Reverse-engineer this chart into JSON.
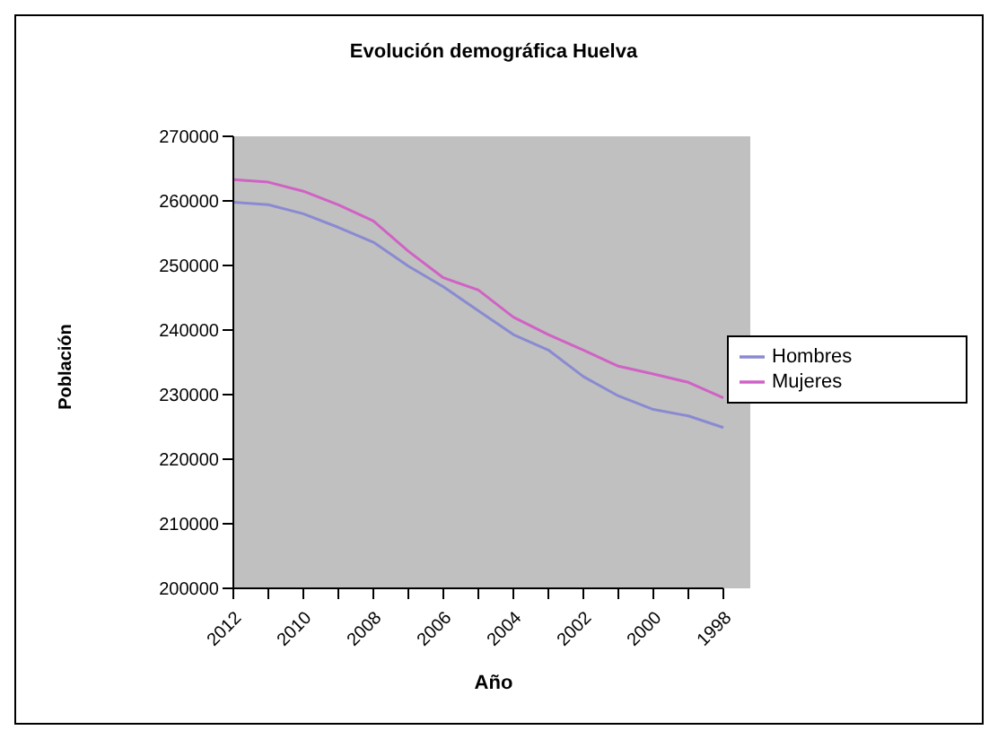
{
  "chart_data": {
    "type": "line",
    "title": "Evolución demográfica Huelva",
    "xlabel": "Año",
    "ylabel": "Población",
    "categories": [
      "2012",
      null,
      "2010",
      null,
      "2008",
      null,
      "2006",
      null,
      "2004",
      null,
      "2002",
      null,
      "2000",
      null,
      "1998"
    ],
    "series": [
      {
        "name": "Hombres",
        "color": "#8a8ad2",
        "values": [
          259800,
          259400,
          258000,
          255900,
          253600,
          249900,
          246700,
          243000,
          239300,
          236900,
          232800,
          229800,
          227700,
          226700,
          224900
        ]
      },
      {
        "name": "Mujeres",
        "color": "#d062c4",
        "values": [
          263300,
          262900,
          261500,
          259400,
          256900,
          252200,
          248100,
          246200,
          242000,
          239300,
          236900,
          234400,
          233200,
          231900,
          229500
        ]
      }
    ],
    "ylim": [
      200000,
      270000
    ],
    "yticks": [
      200000,
      210000,
      220000,
      230000,
      240000,
      250000,
      260000,
      270000
    ],
    "legend": "right"
  }
}
